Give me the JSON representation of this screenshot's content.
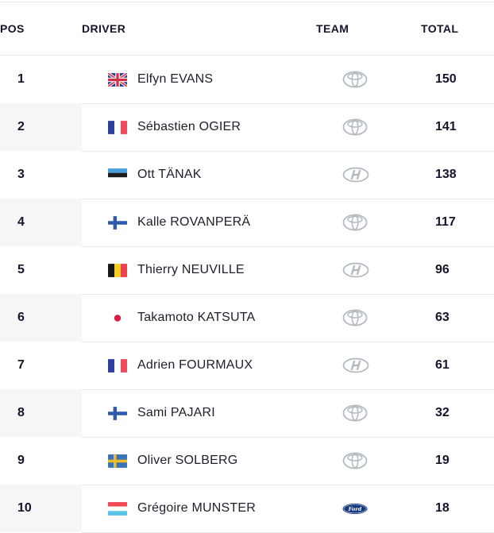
{
  "table": {
    "headers": {
      "pos": "POS",
      "driver": "DRIVER",
      "team": "TEAM",
      "total": "TOTAL"
    },
    "rows": [
      {
        "pos": "1",
        "driver": "Elfyn EVANS",
        "flag": "united-kingdom",
        "team": "toyota",
        "team_name": "Toyota",
        "total": "150"
      },
      {
        "pos": "2",
        "driver": "Sébastien OGIER",
        "flag": "france",
        "team": "toyota",
        "team_name": "Toyota",
        "total": "141"
      },
      {
        "pos": "3",
        "driver": "Ott TÄNAK",
        "flag": "estonia",
        "team": "hyundai",
        "team_name": "Hyundai",
        "total": "138"
      },
      {
        "pos": "4",
        "driver": "Kalle ROVANPERÄ",
        "flag": "finland",
        "team": "toyota",
        "team_name": "Toyota",
        "total": "117"
      },
      {
        "pos": "5",
        "driver": "Thierry NEUVILLE",
        "flag": "belgium",
        "team": "hyundai",
        "team_name": "Hyundai",
        "total": "96"
      },
      {
        "pos": "6",
        "driver": "Takamoto KATSUTA",
        "flag": "japan",
        "team": "toyota",
        "team_name": "Toyota",
        "total": "63"
      },
      {
        "pos": "7",
        "driver": "Adrien FOURMAUX",
        "flag": "france",
        "team": "hyundai",
        "team_name": "Hyundai",
        "total": "61"
      },
      {
        "pos": "8",
        "driver": "Sami PAJARI",
        "flag": "finland",
        "team": "toyota",
        "team_name": "Toyota",
        "total": "32"
      },
      {
        "pos": "9",
        "driver": "Oliver SOLBERG",
        "flag": "sweden",
        "team": "toyota",
        "team_name": "Toyota",
        "total": "19"
      },
      {
        "pos": "10",
        "driver": "Grégoire MUNSTER",
        "flag": "luxembourg",
        "team": "ford",
        "team_name": "Ford",
        "total": "18"
      }
    ]
  },
  "colors": {
    "divider": "#e8e8e8",
    "pos_cell_stripe": "#f6f6f6",
    "text_primary": "#14142b",
    "logo_gray": "#b2b9c1",
    "ford_blue": "#17387f"
  }
}
